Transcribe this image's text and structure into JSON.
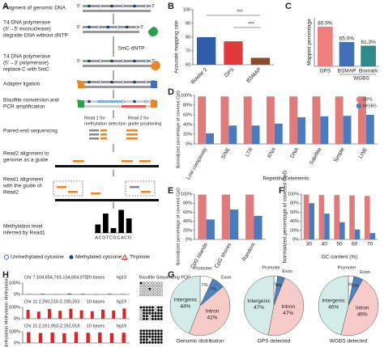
{
  "panels": [
    "A",
    "B",
    "C",
    "D",
    "E",
    "F",
    "G",
    "H"
  ],
  "diagram": {
    "steps": [
      "Fragment of genomic DNA",
      "T4 DNA polymerase",
      "(3'→5' exonuclease)",
      "degrade DNA without dNTP",
      "5mC-dNTP",
      "T4 DNA polymerase",
      "(5'→3' polymerase)",
      "replace C with 5mC",
      "Adapter ligation",
      "Bisulfite conversion and",
      "PCR amplification",
      "Paired-end sequencing",
      "Read2 alignment to",
      "genome as a guide",
      "Read1 alignment",
      "with the guide of",
      "Read2",
      "Methylation level",
      "inferred by Read1"
    ],
    "reads": [
      "Read 1 for",
      "methylation detection",
      "Read 2 for",
      "guide positioning"
    ],
    "primes": [
      "5'",
      "3'"
    ],
    "legend": [
      "Unmethylated cytosine",
      "Methylated cytosine",
      "Thymine"
    ],
    "bsp_title": "Bisulfite Sequencing PCR"
  },
  "chart_data": [
    {
      "type": "bar",
      "ylabel": "Accurate mapping rate",
      "categories": [
        "Bowtie 2",
        "GPS",
        "BSMAP"
      ],
      "values": [
        80,
        77,
        65
      ],
      "colors": [
        "#2e5ea8",
        "#e2393b",
        "#8b4a2b"
      ],
      "ylim": [
        60,
        100
      ],
      "yticks": [
        60,
        70,
        80,
        90,
        100
      ],
      "annotations": [
        "***",
        "***"
      ]
    },
    {
      "type": "bar",
      "ylabel": "Mapped percentage",
      "categories": [
        "GPS",
        "BSMAP",
        "Bismark"
      ],
      "values": [
        80.9,
        65.0,
        61.3
      ],
      "value_labels": [
        "80.9%",
        "65.0%",
        "61.3%"
      ],
      "colors": [
        "#f08080",
        "#3f6fb5",
        "#2e8a8a"
      ],
      "ylim": [
        40,
        90
      ],
      "annotations": [
        "WGBS"
      ]
    },
    {
      "type": "bar",
      "ylabel": "Normalized percentage of covered CpG",
      "xlabel": "Repetitive elements",
      "categories": [
        "Low complexity",
        "SINE",
        "LTR",
        "RNA",
        "DNA",
        "Satellite",
        "Simple",
        "LINE"
      ],
      "series": [
        {
          "name": "GPS",
          "color": "#e07b7b",
          "values": [
            98,
            98,
            98,
            98,
            98,
            98,
            98,
            98
          ]
        },
        {
          "name": "WGBS",
          "color": "#4a7bbf",
          "values": [
            22,
            38,
            38,
            42,
            55,
            57,
            58,
            60
          ]
        }
      ],
      "ylim": [
        0,
        100
      ],
      "yticks": [
        {
          "value": 0,
          "label": "0%"
        },
        {
          "value": 20,
          "label": "20%"
        },
        {
          "value": 40,
          "label": "40%"
        },
        {
          "value": 60,
          "label": "60%"
        },
        {
          "value": 80,
          "label": "80%"
        },
        {
          "value": 100,
          "label": "100%"
        }
      ],
      "legend": "upper right"
    },
    {
      "type": "bar",
      "ylabel": "Normalized percentage of covered CpG",
      "categories": [
        "CpG islands",
        "CpG shores",
        "Random"
      ],
      "series": [
        {
          "name": "GPS",
          "color": "#e07b7b",
          "values": [
            99,
            99,
            99
          ]
        },
        {
          "name": "WGBS",
          "color": "#4a7bbf",
          "values": [
            44,
            66,
            52
          ]
        }
      ],
      "ylim": [
        0,
        100
      ],
      "yticks": [
        {
          "value": 0,
          "label": "0%"
        },
        {
          "value": 20,
          "label": "20%"
        },
        {
          "value": 40,
          "label": "40%"
        },
        {
          "value": 60,
          "label": "60%"
        },
        {
          "value": 80,
          "label": "80%"
        },
        {
          "value": 100,
          "label": "100%"
        }
      ]
    },
    {
      "type": "bar",
      "ylabel": "Normalized percentage of covered CpG",
      "xlabel": "GC content (%)",
      "categories": [
        "30",
        "40",
        "50",
        "60",
        "70"
      ],
      "series": [
        {
          "name": "GPS",
          "color": "#e07b7b",
          "values": [
            99,
            98,
            98,
            97,
            96
          ]
        },
        {
          "name": "WGBS",
          "color": "#4a7bbf",
          "values": [
            80,
            57,
            38,
            22,
            14
          ]
        }
      ],
      "ylim": [
        0,
        100
      ],
      "yticks": [
        {
          "value": 0,
          "label": "0%"
        },
        {
          "value": 20,
          "label": "20%"
        },
        {
          "value": 40,
          "label": "40%"
        },
        {
          "value": 60,
          "label": "60%"
        },
        {
          "value": 80,
          "label": "80%"
        },
        {
          "value": 100,
          "label": "100%"
        }
      ]
    },
    {
      "type": "pie",
      "title": "Genomic distribution",
      "categories": [
        "Promoter",
        "Exon",
        "Intron",
        "Intergenic"
      ],
      "values": [
        7,
        7,
        42,
        44
      ],
      "value_labels": [
        "7%",
        "7%",
        "42%",
        "44%"
      ],
      "colors": [
        "#ffffff",
        "#4f81bd",
        "#f7cbc7",
        "#d3ece9"
      ]
    },
    {
      "type": "pie",
      "title": "GPS detected",
      "categories": [
        "Promoter",
        "Exon",
        "Intron",
        "Intergenic"
      ],
      "values": [
        2,
        4,
        47,
        47
      ],
      "value_labels": [
        "2%",
        "4%",
        "47%",
        "47%"
      ],
      "colors": [
        "#ffffff",
        "#4f81bd",
        "#f7cbc7",
        "#d3ece9"
      ]
    },
    {
      "type": "pie",
      "title": "WGBS detected",
      "categories": [
        "Promoter",
        "Exon",
        "Intron",
        "Intergenic"
      ],
      "values": [
        3,
        5,
        46,
        46
      ],
      "value_labels": [
        "3%",
        "5%",
        "46%",
        "46%"
      ],
      "colors": [
        "#ffffff",
        "#4f81bd",
        "#f7cbc7",
        "#d3ece9"
      ]
    },
    {
      "type": "bar",
      "title": "Chr 7:104,654,793-104,654,970",
      "ylabel": "Methylation",
      "values": [
        4,
        6,
        3,
        8,
        5,
        3,
        6,
        4
      ],
      "color": "#d62728",
      "ylim": [
        0,
        100
      ],
      "yticks": [
        {
          "value": 0,
          "label": "0%"
        },
        {
          "value": 100,
          "label": "100%"
        }
      ],
      "annotations": [
        "20 bases",
        "hg19"
      ]
    },
    {
      "type": "bar",
      "title": "Chr 11:2,290,210-2,290,263",
      "ylabel": "Methylation",
      "values": [
        78,
        62,
        85,
        70,
        88,
        74,
        66,
        80,
        72,
        90
      ],
      "color": "#d62728",
      "ylim": [
        0,
        100
      ],
      "yticks": [
        {
          "value": 0,
          "label": "0%"
        },
        {
          "value": 100,
          "label": "100%"
        }
      ],
      "annotations": [
        "10 bases",
        "hg19"
      ]
    },
    {
      "type": "bar",
      "title": "Chr 11:2,161,952-2,162,018",
      "ylabel": "Methylation",
      "values": [
        95,
        88,
        92,
        85,
        97,
        90,
        93,
        87,
        91
      ],
      "color": "#d62728",
      "ylim": [
        0,
        100
      ],
      "yticks": [
        {
          "value": 0,
          "label": "0%"
        },
        {
          "value": 100,
          "label": "100%"
        }
      ],
      "annotations": [
        "10 bases",
        "hg19"
      ]
    },
    {
      "type": "bar",
      "xlabel": "ACGTCGCACG",
      "values": [
        35,
        80,
        20,
        95,
        60
      ],
      "color": "#000000",
      "ylim": [
        0,
        100
      ]
    }
  ]
}
